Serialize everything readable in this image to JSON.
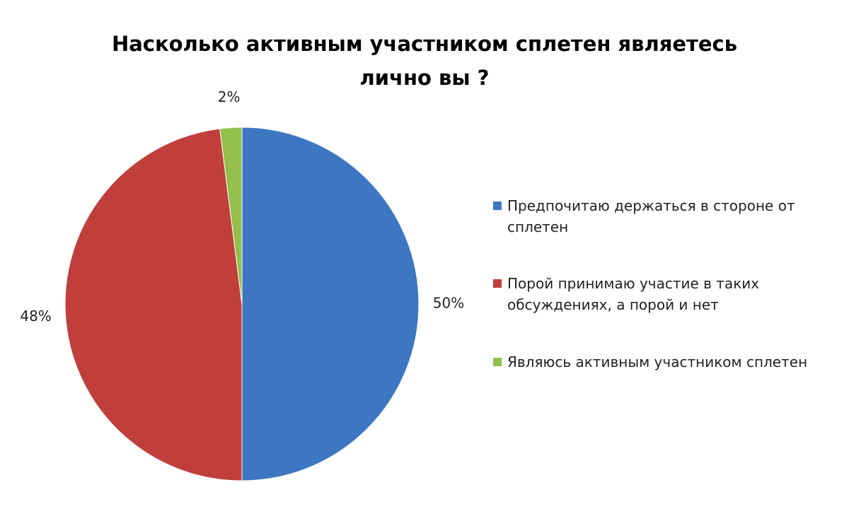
{
  "chart_data": {
    "type": "pie",
    "title": "Насколько активным участником сплетен являетесь лично вы ?",
    "categories": [
      "Предпочитаю держаться в стороне от сплетен",
      "Порой принимаю участие в таких обсуждениях, а порой и нет",
      "Являюсь активным участником сплетен"
    ],
    "values": [
      50,
      48,
      2
    ],
    "value_labels": [
      "50%",
      "48%",
      "2%"
    ],
    "colors": [
      "#3d77c2",
      "#c03f3c",
      "#93bf4a"
    ],
    "legend": "right"
  }
}
